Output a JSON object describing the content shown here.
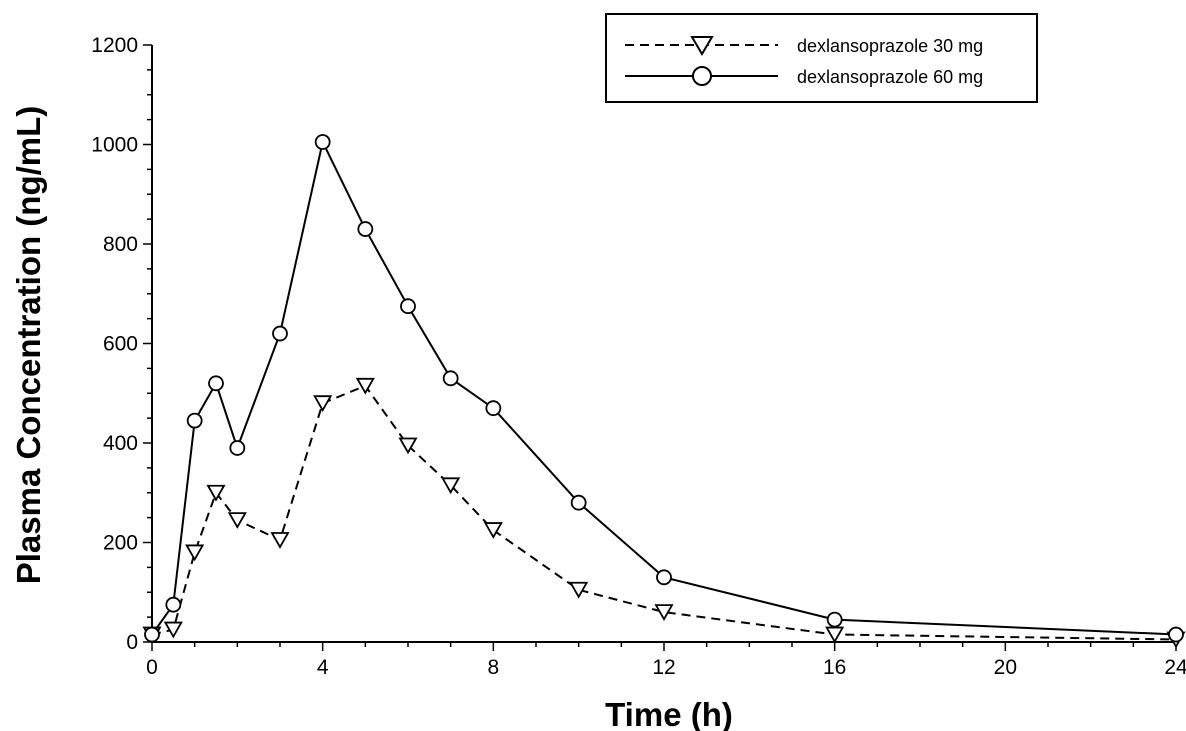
{
  "chart_data": {
    "type": "line",
    "xlabel": "Time (h)",
    "ylabel": "Plasma Concentration (ng/mL)",
    "xlim": [
      0,
      24
    ],
    "ylim": [
      0,
      1200
    ],
    "x_ticks": [
      0,
      4,
      8,
      12,
      16,
      20,
      24
    ],
    "y_ticks": [
      0,
      200,
      400,
      600,
      800,
      1000,
      1200
    ],
    "grid": false,
    "legend_position": "top-right",
    "series": [
      {
        "name": "dexlansoprazole 30 mg",
        "marker": "triangle-down",
        "line_style": "dashed",
        "x": [
          0,
          0.5,
          1,
          1.5,
          2,
          3,
          4,
          5,
          6,
          7,
          8,
          10,
          12,
          16,
          24
        ],
        "y": [
          15,
          25,
          180,
          300,
          245,
          205,
          480,
          515,
          395,
          315,
          225,
          105,
          60,
          15,
          5
        ]
      },
      {
        "name": "dexlansoprazole 60 mg",
        "marker": "circle",
        "line_style": "solid",
        "x": [
          0,
          0.5,
          1,
          1.5,
          2,
          3,
          4,
          5,
          6,
          7,
          8,
          10,
          12,
          16,
          24
        ],
        "y": [
          15,
          75,
          445,
          520,
          390,
          620,
          1005,
          830,
          675,
          530,
          470,
          280,
          130,
          45,
          15
        ]
      }
    ]
  }
}
